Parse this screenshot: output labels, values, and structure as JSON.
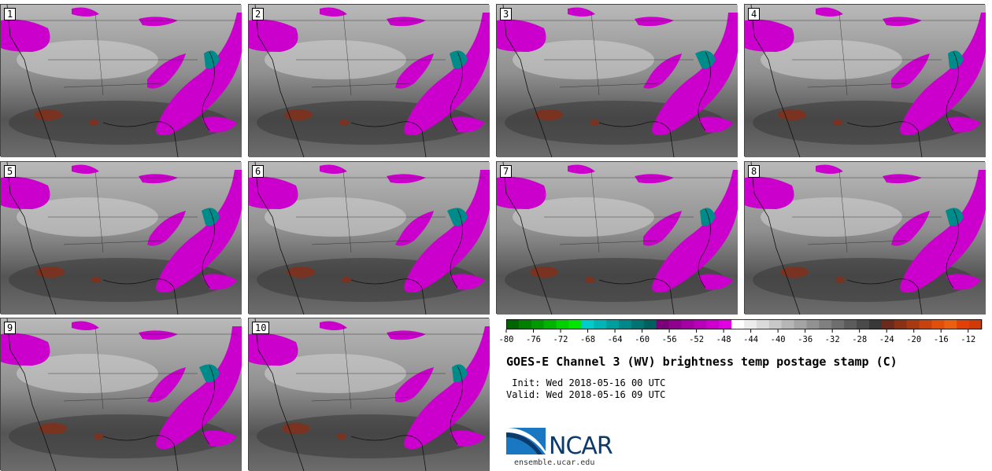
{
  "panels": [
    {
      "label": "1"
    },
    {
      "label": "2"
    },
    {
      "label": "3"
    },
    {
      "label": "4"
    },
    {
      "label": "5"
    },
    {
      "label": "6"
    },
    {
      "label": "7"
    },
    {
      "label": "8"
    },
    {
      "label": "9"
    },
    {
      "label": "10"
    }
  ],
  "chart_data": {
    "type": "heatmap",
    "title": "GOES-E Channel 3 (WV) brightness temp postage stamp (C)",
    "colorbar": {
      "min": -80,
      "max": -10,
      "tick_labels": [
        "-80",
        "-76",
        "-72",
        "-68",
        "-64",
        "-60",
        "-56",
        "-52",
        "-48",
        "-44",
        "-40",
        "-36",
        "-32",
        "-28",
        "-24",
        "-20",
        "-16",
        "-12"
      ],
      "tick_values": [
        -80,
        -76,
        -72,
        -68,
        -64,
        -60,
        -56,
        -52,
        -48,
        -44,
        -40,
        -36,
        -32,
        -28,
        -24,
        -20,
        -16,
        -12
      ],
      "colors": [
        "#006400",
        "#007f00",
        "#009900",
        "#00b300",
        "#00d000",
        "#00e600",
        "#00cccc",
        "#00b5b5",
        "#009e9e",
        "#008888",
        "#007373",
        "#006060",
        "#7a007a",
        "#8f008f",
        "#a400a4",
        "#b800b8",
        "#cc00cc",
        "#e000e0",
        "#ffffff",
        "#ececec",
        "#dadada",
        "#c8c8c8",
        "#b6b6b6",
        "#a4a4a4",
        "#929292",
        "#808080",
        "#6e6e6e",
        "#5c5c5c",
        "#4a4a4a",
        "#383838",
        "#6b2a1a",
        "#8b3216",
        "#a83a12",
        "#c6420e",
        "#e0500a",
        "#e86010",
        "#e0400a",
        "#d03a08"
      ]
    }
  },
  "info": {
    "init": " Init: Wed 2018-05-16 00 UTC",
    "valid": "Valid: Wed 2018-05-16 09 UTC"
  },
  "logo": {
    "name": "NCAR",
    "url": "ensemble.ucar.edu"
  }
}
